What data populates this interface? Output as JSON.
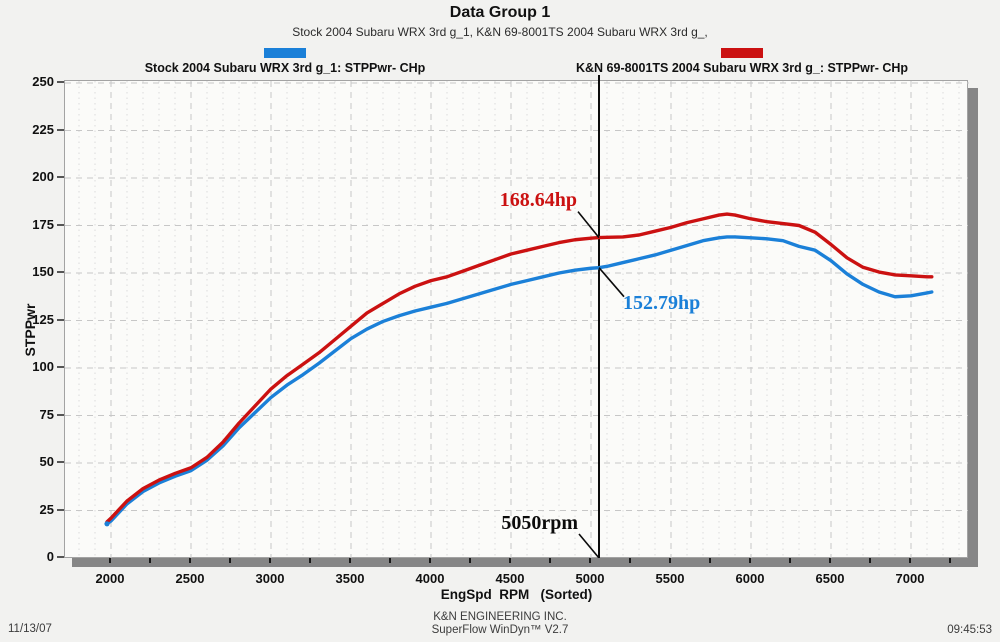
{
  "title": "Data Group 1",
  "subtitle": "Stock 2004 Subaru WRX 3rd g_1, K&N 69-8001TS 2004 Subaru WRX 3rd g_,",
  "legend": {
    "position": "top",
    "series": [
      {
        "label": "Stock 2004 Subaru WRX 3rd g_1: STPPwr- CHp",
        "color": "#1b80d8"
      },
      {
        "label": "K&N 69-8001TS 2004 Subaru WRX 3rd g_: STPPwr- CHp",
        "color": "#cb1111"
      }
    ]
  },
  "y_axis": {
    "title": "STPPwr",
    "ticks": [
      0,
      25,
      50,
      75,
      100,
      125,
      150,
      175,
      200,
      225,
      250
    ]
  },
  "x_axis": {
    "title": "EngSpd  RPM   (Sorted)",
    "ticks": [
      2000,
      2500,
      3000,
      3500,
      4000,
      4500,
      5000,
      5500,
      6000,
      6500,
      7000
    ]
  },
  "annotations": {
    "red_power": "168.64hp",
    "blue_power": "152.79hp",
    "cursor_rpm_label": "5050rpm"
  },
  "footer": {
    "date": "11/13/07",
    "company": "K&N ENGINEERING INC.",
    "software": "SuperFlow WinDyn™ V2.7",
    "time": "09:45:53"
  },
  "chart_data": {
    "type": "line",
    "title": "Data Group 1",
    "xlabel": "EngSpd RPM (Sorted)",
    "ylabel": "STPPwr",
    "xlim": [
      1712,
      7362
    ],
    "ylim": [
      0,
      250
    ],
    "grid": {
      "x_major_step": 500,
      "x_minor_step": 100,
      "y_major_step": 25,
      "style": "dashed"
    },
    "legend_position": "top",
    "cursor": {
      "rpm": 5050,
      "red_value": 168.64,
      "blue_value": 152.79
    },
    "x": [
      1975,
      2000,
      2100,
      2200,
      2300,
      2400,
      2500,
      2600,
      2700,
      2800,
      2900,
      3000,
      3100,
      3200,
      3300,
      3400,
      3500,
      3600,
      3700,
      3800,
      3900,
      4000,
      4100,
      4200,
      4300,
      4400,
      4500,
      4600,
      4700,
      4800,
      4900,
      5000,
      5050,
      5100,
      5200,
      5300,
      5400,
      5500,
      5600,
      5700,
      5800,
      5850,
      5900,
      6000,
      6100,
      6200,
      6300,
      6400,
      6500,
      6600,
      6700,
      6800,
      6900,
      7000,
      7100,
      7130
    ],
    "series": [
      {
        "name": "Stock 2004 Subaru WRX 3rd g_1: STPPwr- CHp",
        "color": "#1b80d8",
        "values": [
          18,
          19.5,
          28.5,
          35,
          39.5,
          43,
          46,
          51.5,
          59,
          68.5,
          76.5,
          84.5,
          91,
          96.5,
          102.5,
          109,
          115.5,
          120.5,
          124.5,
          127.5,
          130,
          132,
          134,
          136.5,
          139,
          141.5,
          144,
          146,
          148,
          150,
          151.5,
          152.5,
          152.79,
          153.5,
          155.5,
          157.5,
          159.5,
          162,
          164.5,
          167,
          168.5,
          169,
          169,
          168.5,
          168,
          167,
          164,
          162,
          156.5,
          149.5,
          144,
          140,
          137.5,
          138,
          139.5,
          140
        ]
      },
      {
        "name": "K&N 69-8001TS 2004 Subaru WRX 3rd g_: STPPwr- CHp",
        "color": "#cb1111",
        "values": [
          19,
          21,
          30,
          36.5,
          41,
          44.5,
          47.5,
          53,
          61,
          71,
          80,
          89,
          96,
          102,
          108,
          115,
          122,
          129,
          134,
          139,
          143,
          146,
          148,
          151,
          154,
          157,
          160,
          162,
          164,
          166,
          167.5,
          168.3,
          168.64,
          168.8,
          169,
          170,
          172,
          174,
          176.5,
          178.5,
          180.5,
          181,
          180.5,
          178.5,
          177,
          176,
          175,
          171.5,
          165,
          158,
          153,
          150.5,
          149,
          148.5,
          148,
          148
        ]
      }
    ]
  }
}
